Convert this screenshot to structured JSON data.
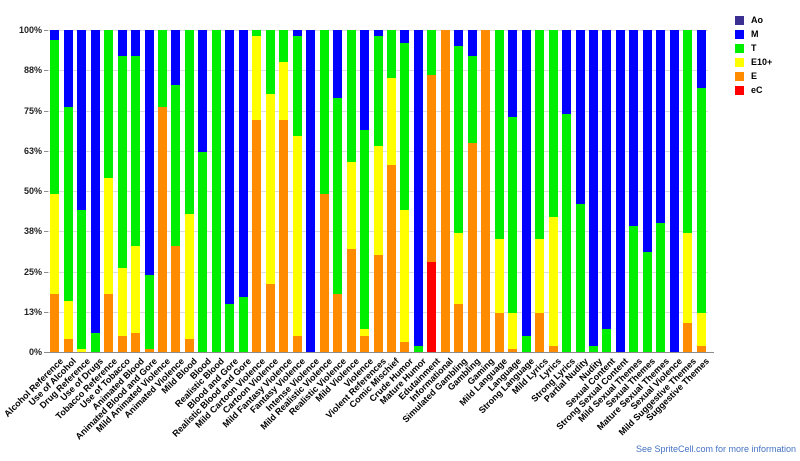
{
  "footer": {
    "text": "See SpriteCell.com for more information",
    "color": "#4472c4"
  },
  "legend": {
    "position": "top-right",
    "items": [
      {
        "label": "Ao",
        "color": "#3b3092"
      },
      {
        "label": "M",
        "color": "#0000ff"
      },
      {
        "label": "T",
        "color": "#00ee00"
      },
      {
        "label": "E10+",
        "color": "#ffff00"
      },
      {
        "label": "E",
        "color": "#ff8c00"
      },
      {
        "label": "eC",
        "color": "#ff0000"
      }
    ]
  },
  "y_axis": {
    "tick_labels": [
      "0%",
      "13%",
      "25%",
      "38%",
      "50%",
      "63%",
      "75%",
      "88%",
      "100%"
    ],
    "tick_values": [
      0,
      12.5,
      25,
      37.5,
      50,
      62.5,
      75,
      87.5,
      100
    ]
  },
  "chart_data": {
    "type": "bar",
    "stacked": true,
    "unit": "percent of titles",
    "title": "",
    "xlabel": "",
    "ylabel": "",
    "ylim": [
      0,
      100
    ],
    "grid": true,
    "legend_position": "top-right",
    "categories": [
      "Alcohol Reference",
      "Use of Alcohol",
      "Drug Reference",
      "Use of Drugs",
      "Tobacco Reference",
      "Use of Tobacco",
      "Animated Blood",
      "Animated Blood and Gore",
      "Mild Animated Violence",
      "Animated Violence",
      "Mild Blood",
      "Blood",
      "Realistic Blood",
      "Blood and Gore",
      "Realistic Blood and Gore",
      "Mild Cartoon Violence",
      "Cartoon Violence",
      "Mild Fantasy Violence",
      "Fantasy Violence",
      "Intense Violence",
      "Mild Realistic Violence",
      "Realistic Violence",
      "Mild Violence",
      "Violence",
      "Violent References",
      "Comic Mischief",
      "Crude Humor",
      "Mature Humor",
      "Edutainment",
      "Informational",
      "Simulated Gambling",
      "Gambling",
      "Gaming",
      "Mild Language",
      "Language",
      "Strong Language",
      "Mild Lyrics",
      "Lyrics",
      "Strong Lyrics",
      "Partial Nudity",
      "Nudity",
      "Sexual Content",
      "Strong Sexual Content",
      "Mild Sexual Themes",
      "Sexual Themes",
      "Mature Sexual Themes",
      "Sexual Violence",
      "Mild Suggestive Themes",
      "Suggestive Themes"
    ],
    "series": [
      {
        "name": "eC",
        "color": "#ff0000",
        "values": [
          0,
          0,
          0,
          0,
          0,
          0,
          0,
          0,
          0,
          0,
          0,
          0,
          0,
          0,
          0,
          0,
          0,
          0,
          0,
          0,
          0,
          0,
          0,
          0,
          0,
          0,
          0,
          0,
          28,
          0,
          0,
          0,
          0,
          0,
          0,
          0,
          0,
          0,
          0,
          0,
          0,
          0,
          0,
          0,
          0,
          0,
          0,
          0,
          0
        ]
      },
      {
        "name": "E",
        "color": "#ff8c00",
        "values": [
          18,
          4,
          0,
          0,
          18,
          5,
          6,
          1,
          76,
          33,
          4,
          0,
          0,
          0,
          0,
          72,
          21,
          72,
          5,
          0,
          49,
          18,
          32,
          5,
          30,
          58,
          3,
          0,
          58,
          100,
          15,
          65,
          100,
          12,
          1,
          0,
          12,
          2,
          0,
          0,
          0,
          0,
          0,
          0,
          0,
          0,
          0,
          9,
          2
        ]
      },
      {
        "name": "E10+",
        "color": "#ffff00",
        "values": [
          31,
          12,
          1,
          0,
          36,
          21,
          27,
          0,
          0,
          0,
          39,
          0,
          0,
          0,
          0,
          26,
          59,
          18,
          62,
          0,
          0,
          0,
          27,
          2,
          34,
          27,
          41,
          0,
          0,
          0,
          22,
          0,
          0,
          23,
          11,
          0,
          23,
          40,
          0,
          0,
          0,
          0,
          0,
          0,
          0,
          0,
          0,
          28,
          10
        ]
      },
      {
        "name": "T",
        "color": "#00ee00",
        "values": [
          48,
          60,
          43,
          6,
          46,
          66,
          59,
          23,
          24,
          50,
          57,
          62,
          100,
          15,
          17,
          2,
          20,
          10,
          31,
          0,
          51,
          61,
          41,
          62,
          34,
          15,
          52,
          2,
          14,
          0,
          58,
          27,
          0,
          65,
          61,
          5,
          65,
          58,
          74,
          46,
          2,
          7,
          0,
          39,
          31,
          40,
          0,
          63,
          70
        ]
      },
      {
        "name": "M",
        "color": "#0000ff",
        "values": [
          3,
          24,
          56,
          94,
          0,
          8,
          8,
          76,
          0,
          17,
          0,
          38,
          0,
          85,
          83,
          0,
          0,
          0,
          2,
          100,
          0,
          21,
          0,
          31,
          2,
          0,
          4,
          98,
          0,
          0,
          5,
          8,
          0,
          0,
          27,
          95,
          0,
          0,
          26,
          54,
          98,
          93,
          100,
          61,
          69,
          60,
          100,
          0,
          18
        ]
      },
      {
        "name": "Ao",
        "color": "#3b3092",
        "values": [
          0,
          0,
          0,
          0,
          0,
          0,
          0,
          0,
          0,
          0,
          0,
          0,
          0,
          0,
          0,
          0,
          0,
          0,
          0,
          0,
          0,
          0,
          0,
          0,
          0,
          0,
          0,
          0,
          0,
          0,
          0,
          0,
          0,
          0,
          0,
          0,
          0,
          0,
          0,
          0,
          0,
          0,
          0,
          0,
          0,
          0,
          0,
          0,
          0
        ]
      }
    ]
  }
}
